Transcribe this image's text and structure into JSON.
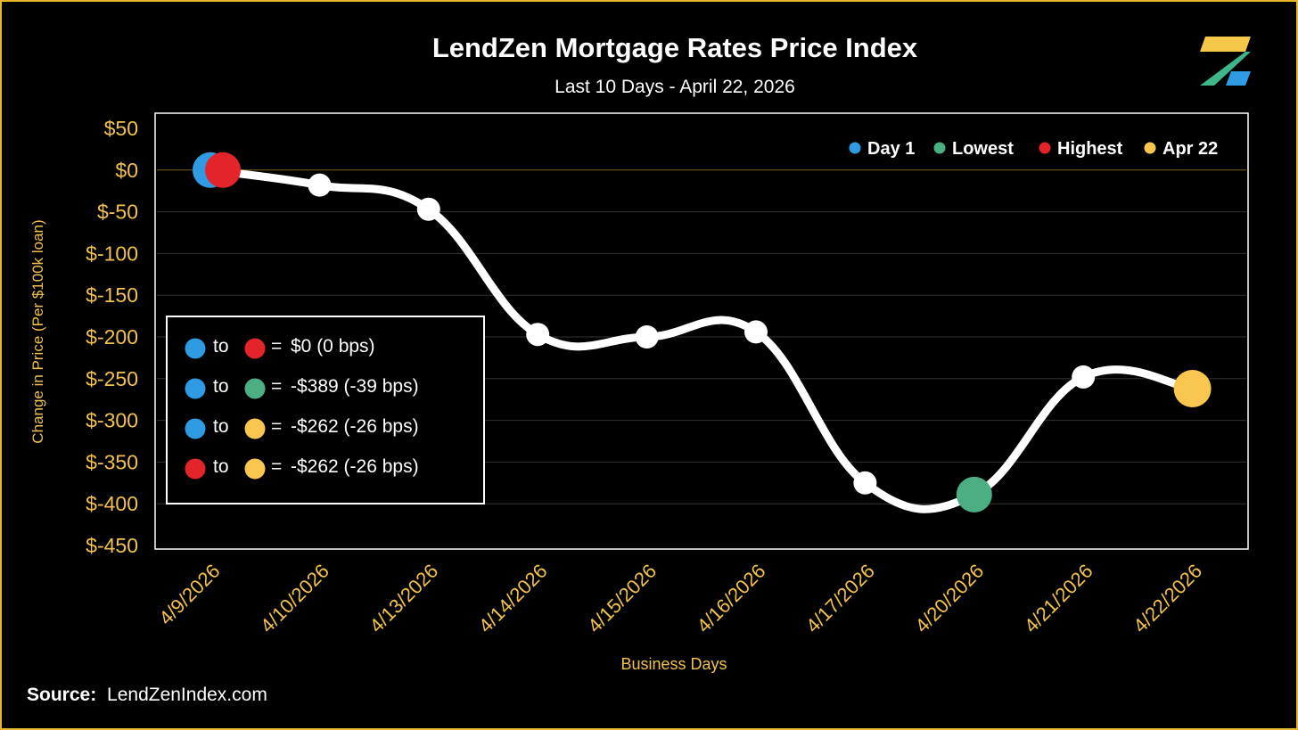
{
  "header": {
    "title": "LendZen Mortgage Rates Price Index",
    "subtitle": "Last 10 Days - April 22, 2026"
  },
  "footer": {
    "source_label": "Source:",
    "source_value": "LendZenIndex.com"
  },
  "colors": {
    "axis_text": "#f2c14e",
    "line": "#ffffff",
    "day1": "#2f9be3",
    "lowest": "#4caf84",
    "highest": "#e3242b",
    "latest": "#f9c74f",
    "frame": "#e9b62a"
  },
  "summary_box": {
    "to_word": "to",
    "equals": "=",
    "rows": [
      {
        "from": "day1",
        "to": "highest",
        "text": " $0 (0 bps)"
      },
      {
        "from": "day1",
        "to": "lowest",
        "text": "-$389 (-39 bps)"
      },
      {
        "from": "day1",
        "to": "latest",
        "text": "-$262 (-26 bps)"
      },
      {
        "from": "highest",
        "to": "latest",
        "text": "-$262 (-26 bps)"
      }
    ]
  },
  "chart_data": {
    "type": "line",
    "title": "LendZen Mortgage Rates Price Index",
    "subtitle": "Last 10 Days - April 22, 2026",
    "xlabel": "Business Days",
    "ylabel": "Change in Price (Per $100k loan)",
    "ylim": [
      -450,
      50
    ],
    "yticks": [
      50,
      0,
      -50,
      -100,
      -150,
      -200,
      -250,
      -300,
      -350,
      -400,
      -450
    ],
    "ytick_labels": [
      "$50",
      "$0",
      "$-50",
      "$-100",
      "$-150",
      "$-200",
      "$-250",
      "$-300",
      "$-350",
      "$-400",
      "$-450"
    ],
    "categories": [
      "4/9/2026",
      "4/10/2026",
      "4/13/2026",
      "4/14/2026",
      "4/15/2026",
      "4/16/2026",
      "4/17/2026",
      "4/20/2026",
      "4/21/2026",
      "4/22/2026"
    ],
    "values": [
      0,
      -18,
      -47,
      -197,
      -200,
      -194,
      -375,
      -389,
      -248,
      -262
    ],
    "legend": [
      {
        "key": "day1",
        "label": "Day 1"
      },
      {
        "key": "lowest",
        "label": "Lowest"
      },
      {
        "key": "highest",
        "label": "Highest"
      },
      {
        "key": "latest",
        "label": "Apr 22"
      }
    ],
    "legend_position": "top-right",
    "grid": true
  }
}
